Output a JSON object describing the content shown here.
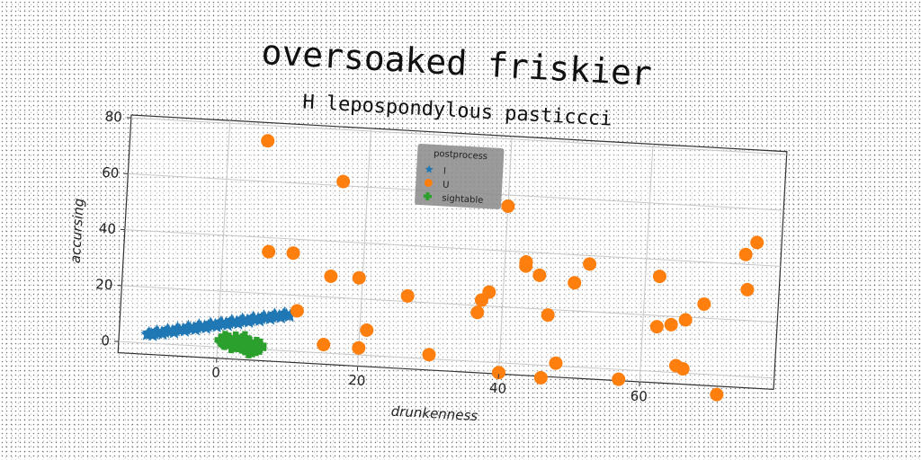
{
  "chart_data": {
    "type": "scatter",
    "suptitle": "oversoaked friskier",
    "title": "H lepospondylous pasticcci",
    "xlabel": "drunkenness",
    "ylabel": "accursing",
    "xlim": [
      -14,
      79
    ],
    "ylim": [
      -4,
      81
    ],
    "xticks": [
      0,
      20,
      40,
      60
    ],
    "yticks": [
      0,
      20,
      40,
      60,
      80
    ],
    "grid": true,
    "legend": {
      "title": "postprocess",
      "placement": "top-center"
    },
    "series": [
      {
        "name": "l",
        "marker": "star",
        "color": "#1f77b4",
        "points": [
          [
            -10,
            3
          ],
          [
            -9.5,
            3.3
          ],
          [
            -9,
            3.6
          ],
          [
            -8.5,
            3.8
          ],
          [
            -8,
            4.1
          ],
          [
            -7.5,
            4.3
          ],
          [
            -7,
            4.6
          ],
          [
            -6.5,
            4.8
          ],
          [
            -6,
            5.1
          ],
          [
            -5.5,
            5.3
          ],
          [
            -5,
            5.6
          ],
          [
            -4.5,
            5.8
          ],
          [
            -4,
            6.1
          ],
          [
            -3.5,
            6.3
          ],
          [
            -3,
            6.6
          ],
          [
            -2.5,
            6.8
          ],
          [
            -2,
            7.1
          ],
          [
            -1.5,
            7.3
          ],
          [
            -1,
            7.6
          ],
          [
            -0.5,
            7.8
          ],
          [
            0,
            8.1
          ],
          [
            0.5,
            8.3
          ],
          [
            1,
            8.6
          ],
          [
            1.5,
            8.8
          ],
          [
            2,
            9.1
          ],
          [
            2.5,
            9.3
          ],
          [
            3,
            9.6
          ],
          [
            3.5,
            9.8
          ],
          [
            4,
            10.1
          ],
          [
            4.5,
            10.3
          ],
          [
            5,
            10.6
          ],
          [
            5.5,
            10.8
          ],
          [
            6,
            11.1
          ],
          [
            6.5,
            11.3
          ],
          [
            7,
            11.6
          ],
          [
            7.5,
            11.8
          ],
          [
            8,
            12.1
          ],
          [
            8.5,
            12.3
          ],
          [
            9,
            12.6
          ],
          [
            9.5,
            12.8
          ],
          [
            -9.8,
            3.6
          ],
          [
            -8.7,
            4.4
          ],
          [
            -7.2,
            5.2
          ],
          [
            -5.8,
            5.9
          ],
          [
            -4.3,
            6.7
          ],
          [
            -2.8,
            7.4
          ],
          [
            -1.2,
            8.2
          ],
          [
            0.3,
            8.9
          ],
          [
            1.8,
            9.7
          ],
          [
            3.3,
            10.4
          ],
          [
            4.8,
            11.2
          ],
          [
            6.3,
            11.9
          ],
          [
            7.8,
            12.7
          ],
          [
            9.2,
            13.3
          ],
          [
            -9.2,
            2.9
          ],
          [
            -7.8,
            3.6
          ],
          [
            -6.2,
            4.3
          ],
          [
            -4.7,
            5.1
          ],
          [
            -3.2,
            5.8
          ],
          [
            -1.7,
            6.6
          ],
          [
            -0.2,
            7.3
          ],
          [
            1.3,
            8.1
          ],
          [
            2.8,
            8.8
          ],
          [
            4.3,
            9.6
          ],
          [
            5.8,
            10.3
          ],
          [
            7.3,
            11.1
          ],
          [
            8.8,
            11.8
          ],
          [
            10,
            12.5
          ]
        ]
      },
      {
        "name": "U",
        "marker": "circle",
        "color": "#ff7f0e",
        "points": [
          [
            5.5,
            74.5
          ],
          [
            16.5,
            61.5
          ],
          [
            40,
            56
          ],
          [
            75.5,
            48
          ],
          [
            74,
            43.5
          ],
          [
            6.5,
            35
          ],
          [
            10,
            35
          ],
          [
            43,
            36.5
          ],
          [
            43,
            35
          ],
          [
            52,
            37
          ],
          [
            45,
            32
          ],
          [
            62,
            34
          ],
          [
            74.5,
            31
          ],
          [
            15.5,
            27.5
          ],
          [
            19.5,
            27.5
          ],
          [
            50,
            30
          ],
          [
            38,
            25
          ],
          [
            37,
            22
          ],
          [
            26.5,
            22
          ],
          [
            68.5,
            25
          ],
          [
            36.5,
            17.5
          ],
          [
            46.5,
            18
          ],
          [
            66,
            19
          ],
          [
            64,
            17
          ],
          [
            62,
            16
          ],
          [
            11,
            14.5
          ],
          [
            21,
            9
          ],
          [
            15,
            3
          ],
          [
            20,
            2.5
          ],
          [
            30,
            1.5
          ],
          [
            48,
            1
          ],
          [
            65,
            2.5
          ],
          [
            66,
            1.5
          ],
          [
            40,
            -3.5
          ],
          [
            46,
            -4.5
          ],
          [
            57,
            -3.5
          ],
          [
            71,
            -7
          ]
        ]
      },
      {
        "name": "sightable",
        "marker": "plus",
        "color": "#2ca02c",
        "points": [
          [
            0.5,
            2.5
          ],
          [
            1,
            1.5
          ],
          [
            1.5,
            3
          ],
          [
            2,
            2
          ],
          [
            2.5,
            3.5
          ],
          [
            3,
            1
          ],
          [
            3,
            2.5
          ],
          [
            3.5,
            3
          ],
          [
            4,
            1.5
          ],
          [
            4,
            0
          ],
          [
            4.5,
            2
          ],
          [
            5,
            1
          ],
          [
            5,
            -0.5
          ],
          [
            5.5,
            2
          ],
          [
            6,
            0.5
          ],
          [
            2,
            0.5
          ],
          [
            1,
            3.5
          ],
          [
            3.5,
            0.5
          ],
          [
            4.5,
            -1
          ],
          [
            6,
            1.5
          ],
          [
            2.5,
            1
          ],
          [
            5.5,
            0
          ],
          [
            0.8,
            2
          ],
          [
            3.8,
            3.8
          ]
        ]
      }
    ]
  }
}
